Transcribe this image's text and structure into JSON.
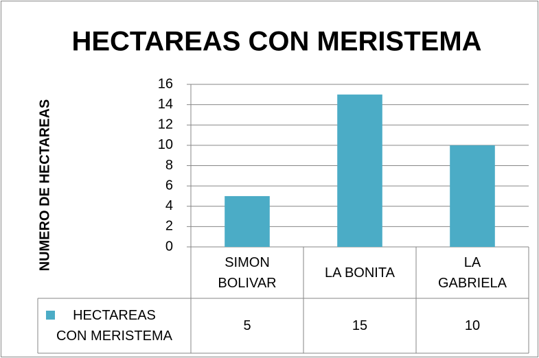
{
  "chart_data": {
    "type": "bar",
    "title": "HECTAREAS CON MERISTEMA",
    "y_label": "NUMERO DE HECTAREAS",
    "categories": [
      "SIMON BOLIVAR",
      "LA BONITA",
      "LA GABRIELA"
    ],
    "series": [
      {
        "name": "HECTAREAS CON MERISTEMA",
        "color": "#4bacc6",
        "values": [
          5,
          15,
          10
        ]
      }
    ],
    "ylim": [
      0,
      16
    ],
    "yticks": [
      0,
      2,
      4,
      6,
      8,
      10,
      12,
      14,
      16
    ],
    "grid": true,
    "data_table": true
  }
}
